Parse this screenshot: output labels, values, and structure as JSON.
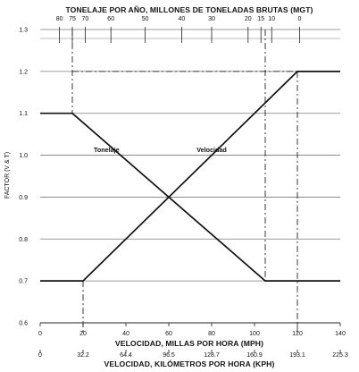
{
  "chart_data": {
    "type": "line",
    "top_axis_title": "TONELAJE POR AÑO, MILLONES DE TONELADAS BRUTAS (MGT)",
    "top_ticks": [
      {
        "label": "80",
        "mph": 9
      },
      {
        "label": "75",
        "mph": 15
      },
      {
        "label": "70",
        "mph": 21
      },
      {
        "label": "60",
        "mph": 33
      },
      {
        "label": "50",
        "mph": 49
      },
      {
        "label": "40",
        "mph": 66
      },
      {
        "label": "30",
        "mph": 80
      },
      {
        "label": "20",
        "mph": 97
      },
      {
        "label": "15",
        "mph": 103
      },
      {
        "label": "10",
        "mph": 108
      },
      {
        "label": "0",
        "mph": 121
      }
    ],
    "ylabel": "FACTOR (V & T)",
    "ylim": [
      0.6,
      1.3
    ],
    "y_ticks": [
      "1.3",
      "1.2",
      "1.1",
      "1.0",
      "0.9",
      "0.8",
      "0.7",
      "0.6"
    ],
    "xlabel": "VELOCIDAD, MILLAS POR HORA (MPH)",
    "xlim": [
      0,
      140
    ],
    "x_ticks": [
      "0",
      "20",
      "40",
      "60",
      "80",
      "100",
      "120",
      "140"
    ],
    "x2label": "VELOCIDAD, KILÓMETROS POR HORA (KPH)",
    "x2_ticks": [
      "0",
      "32.2",
      "64.4",
      "96.5",
      "128.7",
      "160.9",
      "193.1",
      "225.3"
    ],
    "series": [
      {
        "name": "Tonelaje",
        "x": [
          0,
          15,
          105,
          140
        ],
        "y": [
          1.1,
          1.1,
          0.7,
          0.7
        ]
      },
      {
        "name": "Velocidad",
        "x": [
          0,
          20,
          120,
          140
        ],
        "y": [
          0.7,
          0.7,
          1.2,
          1.2
        ]
      }
    ]
  }
}
